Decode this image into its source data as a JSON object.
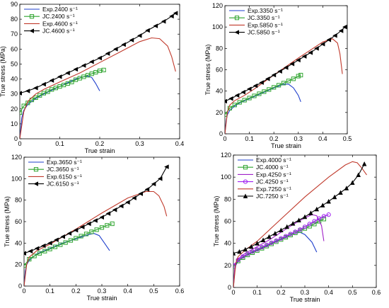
{
  "colors": {
    "exp_a": "#1f3fcc",
    "jc_a": "#2ea42e",
    "exp_b": "#c0392b",
    "jc_b": "#000000",
    "exp_c": "#a020c8",
    "jc_c": "#a020f0"
  },
  "chart_data": [
    {
      "type": "line",
      "xlabel": "True strain",
      "ylabel": "True stress (MPa)",
      "xlim": [
        0,
        0.4
      ],
      "ylim": [
        0,
        90
      ],
      "xticks": [
        0,
        0.1,
        0.2,
        0.3,
        0.4
      ],
      "xtick_labels": [
        "0",
        "0.1",
        "0.2",
        "0.3",
        "0.4"
      ],
      "yticks": [
        0,
        10,
        20,
        30,
        40,
        50,
        60,
        70,
        80,
        90
      ],
      "ytick_labels": [
        "0",
        "10",
        "20",
        "30",
        "40",
        "50",
        "60",
        "70",
        "80",
        "90"
      ],
      "legend_position": "top-left",
      "series": [
        {
          "name": "Exp.2400 s⁻¹",
          "color_key": "exp_a",
          "marker": "none",
          "x": [
            0,
            0.005,
            0.01,
            0.02,
            0.04,
            0.06,
            0.08,
            0.1,
            0.12,
            0.14,
            0.16,
            0.17,
            0.18,
            0.19,
            0.2
          ],
          "y": [
            0,
            14,
            19,
            23,
            27,
            30,
            32.5,
            35,
            37.5,
            40,
            41.5,
            42,
            41,
            37,
            32
          ]
        },
        {
          "name": "JC.2400 s⁻¹",
          "color_key": "jc_a",
          "marker": "square",
          "x": [
            0,
            0.01,
            0.02,
            0.03,
            0.04,
            0.05,
            0.06,
            0.07,
            0.08,
            0.09,
            0.1,
            0.11,
            0.12,
            0.13,
            0.14,
            0.15,
            0.16,
            0.17,
            0.18,
            0.19,
            0.2,
            0.21
          ],
          "y": [
            17.5,
            22,
            24,
            26,
            27.5,
            29,
            30.5,
            31.5,
            33,
            34,
            35,
            36,
            37,
            38,
            39.5,
            40.5,
            41.5,
            42.5,
            43.5,
            44.5,
            45.5,
            46
          ]
        },
        {
          "name": "Exp.4600 s⁻¹",
          "color_key": "exp_b",
          "marker": "none",
          "x": [
            0,
            0.01,
            0.02,
            0.04,
            0.06,
            0.1,
            0.15,
            0.2,
            0.25,
            0.3,
            0.33,
            0.35,
            0.37,
            0.38,
            0.39
          ],
          "y": [
            0,
            18,
            25,
            30,
            33,
            38,
            44,
            51,
            58,
            65,
            67.5,
            67,
            62,
            55,
            45
          ]
        },
        {
          "name": "JC.4600 s⁻¹",
          "color_key": "jc_b",
          "marker": "triangle-left",
          "x": [
            0,
            0.02,
            0.04,
            0.06,
            0.08,
            0.1,
            0.12,
            0.14,
            0.16,
            0.18,
            0.2,
            0.22,
            0.24,
            0.26,
            0.28,
            0.3,
            0.32,
            0.34,
            0.36,
            0.38,
            0.39
          ],
          "y": [
            30.5,
            32,
            34,
            36.5,
            39,
            41.5,
            44,
            46.5,
            49,
            51.5,
            54,
            57,
            60,
            63,
            66,
            69,
            72.5,
            75.5,
            78.5,
            82,
            84
          ]
        }
      ]
    },
    {
      "type": "line",
      "xlabel": "True strain",
      "ylabel": "True stress (MPa)",
      "xlim": [
        0,
        0.5
      ],
      "ylim": [
        0,
        120
      ],
      "xticks": [
        0,
        0.1,
        0.2,
        0.3,
        0.4,
        0.5
      ],
      "xtick_labels": [
        "0",
        "0.1",
        "0.2",
        "0.3",
        "0.4",
        "0.5"
      ],
      "yticks": [
        0,
        20,
        40,
        60,
        80,
        100,
        120
      ],
      "ytick_labels": [
        "0",
        "20",
        "40",
        "60",
        "80",
        "100",
        "120"
      ],
      "legend_position": "top-left",
      "series": [
        {
          "name": "Exp.3350 s⁻¹",
          "color_key": "exp_a",
          "marker": "none",
          "x": [
            0,
            0.005,
            0.01,
            0.02,
            0.04,
            0.06,
            0.1,
            0.15,
            0.2,
            0.24,
            0.26,
            0.28,
            0.3,
            0.31
          ],
          "y": [
            0,
            12,
            18,
            22,
            26,
            29,
            33,
            38,
            43,
            46.5,
            46.5,
            43,
            36,
            30
          ]
        },
        {
          "name": "JC.3350 s⁻¹",
          "color_key": "jc_a",
          "marker": "square",
          "x": [
            0,
            0.02,
            0.04,
            0.06,
            0.08,
            0.1,
            0.12,
            0.14,
            0.16,
            0.18,
            0.2,
            0.22,
            0.24,
            0.26,
            0.28,
            0.3,
            0.31
          ],
          "y": [
            18,
            24,
            27,
            29.5,
            31.5,
            33.5,
            35.5,
            37.5,
            39.5,
            41.5,
            43.5,
            45.5,
            47.5,
            49.5,
            51.5,
            54,
            55
          ]
        },
        {
          "name": "Exp.5850 s⁻¹",
          "color_key": "exp_b",
          "marker": "none",
          "x": [
            0,
            0.01,
            0.02,
            0.04,
            0.08,
            0.12,
            0.2,
            0.3,
            0.4,
            0.44,
            0.46,
            0.47,
            0.48
          ],
          "y": [
            0,
            20,
            27,
            31,
            36,
            42,
            55,
            71,
            86,
            89,
            85,
            75,
            56
          ]
        },
        {
          "name": "JC.5850 s⁻¹",
          "color_key": "jc_b",
          "marker": "triangle-left",
          "x": [
            0,
            0.025,
            0.05,
            0.075,
            0.1,
            0.125,
            0.15,
            0.175,
            0.2,
            0.225,
            0.25,
            0.275,
            0.3,
            0.325,
            0.35,
            0.375,
            0.4,
            0.425,
            0.45,
            0.475,
            0.49
          ],
          "y": [
            30.5,
            33,
            36,
            39,
            42,
            45,
            48,
            51.5,
            55,
            58.5,
            62,
            65.5,
            69,
            72.5,
            76,
            80,
            84,
            88,
            92,
            96.5,
            100
          ]
        }
      ]
    },
    {
      "type": "line",
      "xlabel": "True strain",
      "ylabel": "True stress (MPa)",
      "xlim": [
        0,
        0.6
      ],
      "ylim": [
        0,
        120
      ],
      "xticks": [
        0,
        0.1,
        0.2,
        0.3,
        0.4,
        0.5,
        0.6
      ],
      "xtick_labels": [
        "0",
        "0.1",
        "0.2",
        "0.3",
        "0.4",
        "0.5",
        "0.6"
      ],
      "yticks": [
        0,
        20,
        40,
        60,
        80,
        100,
        120
      ],
      "ytick_labels": [
        "0",
        "20",
        "40",
        "60",
        "80",
        "100",
        "120"
      ],
      "legend_position": "top-left",
      "series": [
        {
          "name": "Exp.3650 s⁻¹",
          "color_key": "exp_a",
          "marker": "none",
          "x": [
            0,
            0.005,
            0.01,
            0.02,
            0.05,
            0.1,
            0.15,
            0.2,
            0.25,
            0.27,
            0.29,
            0.31,
            0.33
          ],
          "y": [
            0,
            14,
            20,
            24,
            30,
            35,
            40,
            44,
            48,
            49,
            47,
            40,
            33
          ]
        },
        {
          "name": "JC.3650 s⁻¹",
          "color_key": "jc_a",
          "marker": "square",
          "x": [
            0,
            0.02,
            0.04,
            0.06,
            0.08,
            0.1,
            0.12,
            0.14,
            0.16,
            0.18,
            0.2,
            0.22,
            0.24,
            0.26,
            0.28,
            0.3,
            0.32,
            0.34
          ],
          "y": [
            19,
            25,
            28,
            30.5,
            32.5,
            34.5,
            36.5,
            38.5,
            40.5,
            42.5,
            44.5,
            46.5,
            48.5,
            50.5,
            52.5,
            54.5,
            56.5,
            58
          ]
        },
        {
          "name": "Exp.6150 s⁻¹",
          "color_key": "exp_b",
          "marker": "none",
          "x": [
            0,
            0.01,
            0.02,
            0.05,
            0.1,
            0.2,
            0.3,
            0.4,
            0.47,
            0.5,
            0.52,
            0.54,
            0.55
          ],
          "y": [
            0,
            20,
            27,
            33,
            39,
            53,
            68,
            82,
            88,
            88,
            84,
            74,
            65
          ]
        },
        {
          "name": "JC.6150 s⁻¹",
          "color_key": "jc_b",
          "marker": "triangle-left",
          "x": [
            0,
            0.025,
            0.05,
            0.075,
            0.1,
            0.125,
            0.15,
            0.175,
            0.2,
            0.225,
            0.25,
            0.275,
            0.3,
            0.325,
            0.35,
            0.375,
            0.4,
            0.425,
            0.45,
            0.475,
            0.5,
            0.525,
            0.55
          ],
          "y": [
            30.5,
            32.5,
            35,
            37.5,
            40,
            43,
            46,
            49,
            52,
            55,
            58,
            61,
            64,
            67.5,
            71,
            74.5,
            78,
            82,
            86,
            90,
            95,
            100,
            111
          ]
        }
      ]
    },
    {
      "type": "line",
      "xlabel": "True strain",
      "ylabel": "True stress (MPa)",
      "xlim": [
        0,
        0.6
      ],
      "ylim": [
        0,
        120
      ],
      "xticks": [
        0,
        0.1,
        0.2,
        0.3,
        0.4,
        0.5,
        0.6
      ],
      "xtick_labels": [
        "0",
        "0.1",
        "0.2",
        "0.3",
        "0.4",
        "0.5",
        "0.6"
      ],
      "yticks": [
        0,
        20,
        40,
        60,
        80,
        100,
        120
      ],
      "ytick_labels": [
        "0",
        "20",
        "40",
        "60",
        "80",
        "100",
        "120"
      ],
      "legend_position": "top-left",
      "series": [
        {
          "name": "Exp.4000 s⁻¹",
          "color_key": "exp_a",
          "marker": "none",
          "x": [
            0,
            0.005,
            0.01,
            0.02,
            0.05,
            0.1,
            0.15,
            0.2,
            0.25,
            0.28,
            0.3,
            0.33,
            0.35
          ],
          "y": [
            0,
            14,
            20,
            24,
            29,
            34,
            39,
            44,
            48.5,
            50,
            48,
            41,
            32
          ]
        },
        {
          "name": "JC.4000 s⁻¹",
          "color_key": "jc_a",
          "marker": "square",
          "x": [
            0,
            0.02,
            0.04,
            0.06,
            0.08,
            0.1,
            0.12,
            0.14,
            0.16,
            0.18,
            0.2,
            0.22,
            0.24,
            0.26,
            0.28,
            0.3,
            0.32,
            0.34,
            0.36,
            0.38
          ],
          "y": [
            19,
            24,
            27,
            29.5,
            31.5,
            33.5,
            35.5,
            37.5,
            39.5,
            41.5,
            43.5,
            45.5,
            47.5,
            49.5,
            51.5,
            53.5,
            55.5,
            57.5,
            60,
            62
          ]
        },
        {
          "name": "Exp.4250 s⁻¹",
          "color_key": "exp_c",
          "marker": "none",
          "x": [
            0,
            0.005,
            0.01,
            0.02,
            0.05,
            0.1,
            0.15,
            0.2,
            0.25,
            0.3,
            0.33,
            0.35,
            0.37,
            0.38
          ],
          "y": [
            0,
            16,
            22,
            26,
            31,
            37,
            43,
            50,
            57,
            63,
            66,
            65,
            56,
            42
          ]
        },
        {
          "name": "JC.4250 s⁻¹",
          "color_key": "jc_c",
          "marker": "circle",
          "x": [
            0,
            0.02,
            0.04,
            0.06,
            0.08,
            0.1,
            0.12,
            0.14,
            0.16,
            0.18,
            0.2,
            0.22,
            0.24,
            0.26,
            0.28,
            0.3,
            0.32,
            0.34,
            0.36,
            0.38,
            0.4
          ],
          "y": [
            20,
            25,
            28,
            30.5,
            32.5,
            34.5,
            36.5,
            38.5,
            40.5,
            42.5,
            44.5,
            46.5,
            48.5,
            50.5,
            52.5,
            55,
            57.5,
            60,
            62.5,
            64.5,
            66
          ]
        },
        {
          "name": "Exp.7250 s⁻¹",
          "color_key": "exp_b",
          "marker": "none",
          "x": [
            0,
            0.01,
            0.02,
            0.05,
            0.1,
            0.2,
            0.3,
            0.4,
            0.47,
            0.5,
            0.52,
            0.54,
            0.56
          ],
          "y": [
            0,
            22,
            28,
            34,
            42,
            62,
            82,
            100,
            111,
            114,
            113,
            108,
            102
          ]
        },
        {
          "name": "JC.7250 s⁻¹",
          "color_key": "jc_b",
          "marker": "triangle-up",
          "x": [
            0,
            0.025,
            0.05,
            0.075,
            0.1,
            0.125,
            0.15,
            0.175,
            0.2,
            0.225,
            0.25,
            0.275,
            0.3,
            0.325,
            0.35,
            0.375,
            0.4,
            0.425,
            0.45,
            0.475,
            0.5,
            0.525,
            0.55
          ],
          "y": [
            31,
            32.5,
            34.5,
            37,
            40,
            43,
            46,
            49,
            52,
            55,
            58,
            61,
            64,
            67.5,
            71,
            74.5,
            78,
            82,
            86,
            90,
            95,
            102,
            112
          ]
        }
      ]
    }
  ]
}
